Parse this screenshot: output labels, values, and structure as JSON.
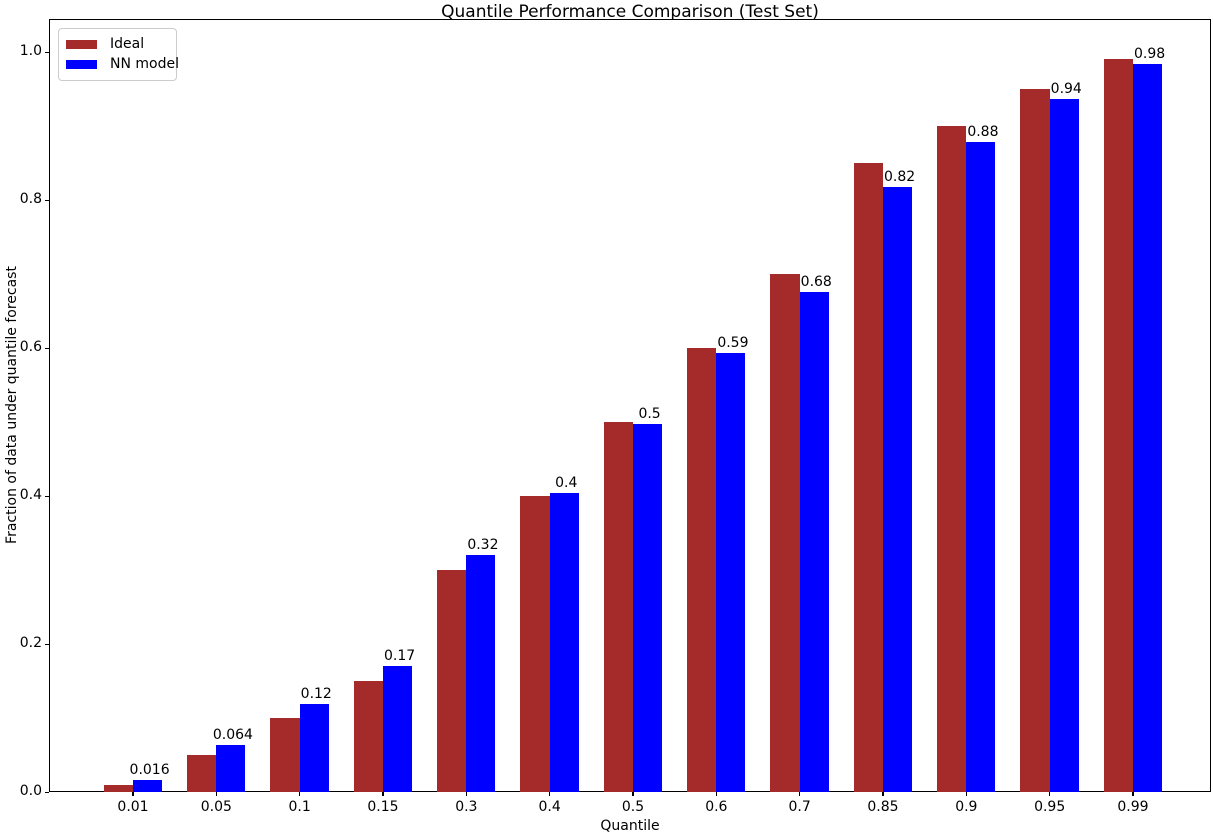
{
  "chart_data": {
    "type": "bar",
    "title": "Quantile Performance Comparison (Test Set)",
    "xlabel": "Quantile",
    "ylabel": "Fraction of data under quantile forecast",
    "categories": [
      "0.01",
      "0.05",
      "0.1",
      "0.15",
      "0.3",
      "0.4",
      "0.5",
      "0.6",
      "0.7",
      "0.85",
      "0.9",
      "0.95",
      "0.99"
    ],
    "series": [
      {
        "name": "Ideal",
        "color": "#A52A2A",
        "values": [
          0.01,
          0.05,
          0.1,
          0.15,
          0.3,
          0.4,
          0.5,
          0.6,
          0.7,
          0.85,
          0.9,
          0.95,
          0.99
        ]
      },
      {
        "name": "NN model",
        "color": "#0000FF",
        "values": [
          0.016,
          0.064,
          0.119,
          0.17,
          0.32,
          0.404,
          0.497,
          0.593,
          0.676,
          0.818,
          0.879,
          0.936,
          0.984
        ],
        "bar_labels": [
          "0.016",
          "0.064",
          "0.12",
          "0.17",
          "0.32",
          "0.4",
          "0.5",
          "0.59",
          "0.68",
          "0.82",
          "0.88",
          "0.94",
          "0.98"
        ]
      }
    ],
    "yticks": [
      {
        "label": "0.0",
        "value": 0.0
      },
      {
        "label": "0.2",
        "value": 0.2
      },
      {
        "label": "0.4",
        "value": 0.4
      },
      {
        "label": "0.6",
        "value": 0.6
      },
      {
        "label": "0.8",
        "value": 0.8
      },
      {
        "label": "1.0",
        "value": 1.0
      }
    ],
    "ylim": [
      0,
      1.045
    ],
    "grid": false,
    "legend_position": "upper left",
    "axis_color": "#000000",
    "background_color": "#ffffff"
  }
}
